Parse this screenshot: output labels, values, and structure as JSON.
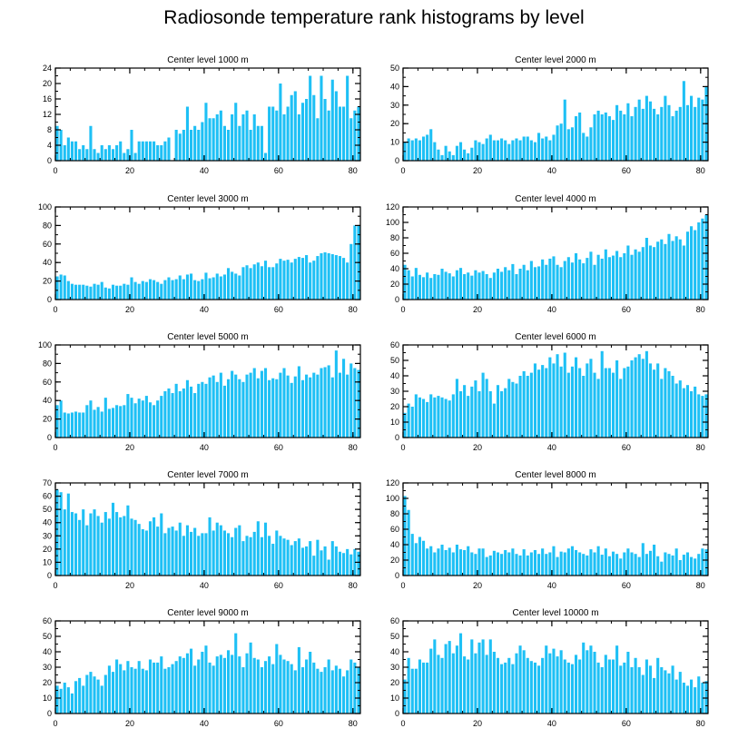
{
  "title": "Radiosonde temperature rank histograms by level",
  "bar_color": "#1ec0f5",
  "chart_data": [
    {
      "type": "bar",
      "title": "Center level 1000 m",
      "xlabel": "",
      "ylabel": "",
      "xlim": [
        0,
        82
      ],
      "ylim": [
        0,
        24
      ],
      "x_ticks": [
        0,
        20,
        40,
        60,
        80
      ],
      "y_ticks": [
        0,
        4,
        8,
        12,
        16,
        20,
        24
      ],
      "values": [
        9,
        8,
        4,
        6,
        5,
        5,
        3,
        4,
        3,
        9,
        3,
        2,
        4,
        3,
        4,
        3,
        4,
        5,
        2,
        3,
        8,
        2,
        5,
        5,
        5,
        5,
        5,
        4,
        4,
        5,
        6,
        0,
        8,
        7,
        8,
        14,
        8,
        9,
        8,
        10,
        15,
        11,
        11,
        12,
        13,
        9,
        8,
        12,
        15,
        9,
        12,
        13,
        8,
        12,
        9,
        9,
        2,
        14,
        14,
        13,
        20,
        12,
        14,
        17,
        18,
        12,
        15,
        16,
        22,
        17,
        11,
        22,
        16,
        13,
        21,
        18,
        14,
        14,
        22,
        11,
        13,
        14
      ]
    },
    {
      "type": "bar",
      "title": "Center level 2000 m",
      "xlabel": "",
      "ylabel": "",
      "xlim": [
        0,
        82
      ],
      "ylim": [
        0,
        50
      ],
      "x_ticks": [
        0,
        20,
        40,
        60,
        80
      ],
      "y_ticks": [
        0,
        10,
        20,
        30,
        40,
        50
      ],
      "values": [
        10,
        12,
        11,
        12,
        11,
        13,
        14,
        17,
        10,
        6,
        3,
        8,
        5,
        3,
        8,
        10,
        6,
        4,
        7,
        11,
        10,
        9,
        12,
        14,
        11,
        11,
        12,
        11,
        9,
        11,
        12,
        11,
        13,
        13,
        11,
        10,
        15,
        12,
        13,
        11,
        14,
        19,
        20,
        33,
        17,
        18,
        24,
        26,
        15,
        13,
        18,
        25,
        27,
        25,
        26,
        24,
        22,
        30,
        27,
        25,
        31,
        24,
        29,
        33,
        28,
        35,
        32,
        28,
        25,
        29,
        35,
        30,
        24,
        27,
        29,
        43,
        30,
        35,
        29,
        34,
        33,
        40
      ]
    },
    {
      "type": "bar",
      "title": "Center level 3000 m",
      "xlabel": "",
      "ylabel": "",
      "xlim": [
        0,
        82
      ],
      "ylim": [
        0,
        100
      ],
      "x_ticks": [
        0,
        20,
        40,
        60,
        80
      ],
      "y_ticks": [
        0,
        20,
        40,
        60,
        80,
        100
      ],
      "values": [
        25,
        27,
        26,
        20,
        17,
        16,
        16,
        16,
        15,
        14,
        17,
        16,
        19,
        13,
        12,
        16,
        15,
        15,
        17,
        16,
        24,
        19,
        17,
        20,
        19,
        22,
        21,
        19,
        17,
        21,
        24,
        21,
        22,
        26,
        22,
        27,
        28,
        21,
        20,
        22,
        29,
        23,
        24,
        28,
        25,
        27,
        34,
        30,
        28,
        26,
        35,
        37,
        34,
        38,
        40,
        36,
        42,
        35,
        35,
        39,
        44,
        42,
        43,
        40,
        44,
        46,
        45,
        48,
        40,
        42,
        47,
        50,
        51,
        50,
        49,
        48,
        47,
        45,
        40,
        60,
        80,
        80
      ]
    },
    {
      "type": "bar",
      "title": "Center level 4000 m",
      "xlabel": "",
      "ylabel": "",
      "xlim": [
        0,
        82
      ],
      "ylim": [
        0,
        120
      ],
      "x_ticks": [
        0,
        20,
        40,
        60,
        80
      ],
      "y_ticks": [
        0,
        20,
        40,
        60,
        80,
        100,
        120
      ],
      "values": [
        45,
        38,
        30,
        41,
        32,
        29,
        35,
        28,
        33,
        32,
        40,
        36,
        34,
        30,
        38,
        41,
        33,
        35,
        31,
        38,
        35,
        37,
        33,
        28,
        35,
        40,
        36,
        42,
        38,
        46,
        33,
        40,
        45,
        38,
        50,
        42,
        43,
        52,
        45,
        53,
        56,
        45,
        42,
        50,
        55,
        48,
        60,
        52,
        47,
        54,
        62,
        45,
        58,
        53,
        65,
        55,
        57,
        63,
        55,
        60,
        70,
        58,
        65,
        62,
        68,
        80,
        70,
        68,
        75,
        78,
        72,
        85,
        76,
        82,
        78,
        70,
        88,
        95,
        90,
        100,
        105,
        110
      ]
    },
    {
      "type": "bar",
      "title": "Center level 5000 m",
      "xlabel": "",
      "ylabel": "",
      "xlim": [
        0,
        82
      ],
      "ylim": [
        0,
        100
      ],
      "x_ticks": [
        0,
        20,
        40,
        60,
        80
      ],
      "y_ticks": [
        0,
        20,
        40,
        60,
        80,
        100
      ],
      "values": [
        35,
        40,
        27,
        26,
        27,
        28,
        27,
        27,
        35,
        40,
        30,
        33,
        28,
        43,
        31,
        32,
        35,
        34,
        35,
        47,
        43,
        37,
        42,
        40,
        45,
        38,
        35,
        40,
        45,
        50,
        53,
        48,
        58,
        50,
        53,
        62,
        55,
        48,
        58,
        60,
        58,
        65,
        67,
        60,
        70,
        56,
        63,
        72,
        68,
        63,
        60,
        68,
        70,
        75,
        64,
        72,
        75,
        62,
        64,
        63,
        70,
        75,
        67,
        59,
        66,
        77,
        62,
        68,
        65,
        70,
        68,
        75,
        76,
        78,
        65,
        94,
        70,
        85,
        68,
        80,
        75,
        73
      ]
    },
    {
      "type": "bar",
      "title": "Center level 6000 m",
      "xlabel": "",
      "ylabel": "",
      "xlim": [
        0,
        82
      ],
      "ylim": [
        0,
        60
      ],
      "x_ticks": [
        0,
        20,
        40,
        60,
        80
      ],
      "y_ticks": [
        0,
        10,
        20,
        30,
        40,
        50,
        60
      ],
      "values": [
        16,
        22,
        20,
        28,
        26,
        25,
        23,
        28,
        26,
        27,
        26,
        25,
        24,
        28,
        38,
        30,
        34,
        27,
        33,
        37,
        30,
        42,
        38,
        30,
        22,
        34,
        30,
        32,
        38,
        36,
        35,
        40,
        43,
        40,
        42,
        48,
        44,
        47,
        45,
        52,
        48,
        54,
        46,
        55,
        42,
        46,
        52,
        45,
        40,
        48,
        51,
        42,
        38,
        56,
        45,
        45,
        42,
        50,
        38,
        45,
        46,
        50,
        52,
        54,
        51,
        56,
        48,
        44,
        48,
        38,
        45,
        43,
        40,
        35,
        37,
        32,
        34,
        30,
        33,
        28,
        27,
        28
      ]
    },
    {
      "type": "bar",
      "title": "Center level 7000 m",
      "xlabel": "",
      "ylabel": "",
      "xlim": [
        0,
        82
      ],
      "ylim": [
        0,
        70
      ],
      "x_ticks": [
        0,
        20,
        40,
        60,
        80
      ],
      "y_ticks": [
        0,
        10,
        20,
        30,
        40,
        50,
        60,
        70
      ],
      "values": [
        65,
        63,
        50,
        62,
        48,
        47,
        42,
        50,
        38,
        47,
        50,
        45,
        40,
        48,
        43,
        55,
        48,
        44,
        45,
        53,
        43,
        42,
        39,
        35,
        34,
        41,
        44,
        37,
        47,
        32,
        36,
        37,
        34,
        40,
        30,
        38,
        33,
        36,
        30,
        32,
        32,
        44,
        34,
        40,
        38,
        34,
        32,
        29,
        36,
        38,
        26,
        30,
        29,
        33,
        41,
        29,
        40,
        30,
        24,
        34,
        30,
        28,
        27,
        23,
        26,
        28,
        21,
        22,
        26,
        15,
        27,
        19,
        22,
        12,
        26,
        22,
        18,
        17,
        20,
        16,
        20,
        18
      ]
    },
    {
      "type": "bar",
      "title": "Center level 8000 m",
      "xlabel": "",
      "ylabel": "",
      "xlim": [
        0,
        82
      ],
      "ylim": [
        0,
        120
      ],
      "x_ticks": [
        0,
        20,
        40,
        60,
        80
      ],
      "y_ticks": [
        0,
        20,
        40,
        60,
        80,
        100,
        120
      ],
      "values": [
        103,
        85,
        54,
        42,
        50,
        45,
        35,
        38,
        30,
        35,
        40,
        33,
        36,
        30,
        40,
        34,
        33,
        38,
        30,
        28,
        35,
        35,
        24,
        26,
        32,
        30,
        28,
        33,
        30,
        35,
        28,
        26,
        34,
        26,
        30,
        33,
        28,
        35,
        28,
        30,
        38,
        24,
        31,
        30,
        35,
        38,
        33,
        30,
        28,
        26,
        34,
        30,
        38,
        27,
        35,
        25,
        31,
        28,
        22,
        30,
        35,
        30,
        28,
        24,
        42,
        28,
        32,
        40,
        25,
        18,
        30,
        28,
        26,
        35,
        20,
        27,
        30,
        24,
        22,
        28,
        35,
        34
      ]
    },
    {
      "type": "bar",
      "title": "Center level 9000 m",
      "xlabel": "",
      "ylabel": "",
      "xlim": [
        0,
        82
      ],
      "ylim": [
        0,
        60
      ],
      "x_ticks": [
        0,
        20,
        40,
        60,
        80
      ],
      "y_ticks": [
        0,
        10,
        20,
        30,
        40,
        50,
        60
      ],
      "values": [
        18,
        16,
        20,
        17,
        13,
        21,
        23,
        18,
        25,
        27,
        24,
        22,
        18,
        25,
        31,
        27,
        35,
        32,
        28,
        34,
        30,
        29,
        34,
        29,
        28,
        35,
        33,
        33,
        37,
        29,
        30,
        32,
        34,
        37,
        36,
        39,
        42,
        31,
        35,
        40,
        44,
        33,
        31,
        37,
        38,
        36,
        41,
        38,
        52,
        37,
        30,
        39,
        46,
        36,
        35,
        30,
        34,
        37,
        32,
        45,
        38,
        35,
        34,
        32,
        28,
        43,
        30,
        35,
        40,
        33,
        29,
        27,
        30,
        35,
        28,
        31,
        29,
        24,
        28,
        35,
        33,
        30
      ]
    },
    {
      "type": "bar",
      "title": "Center level 10000 m",
      "xlabel": "",
      "ylabel": "",
      "xlim": [
        0,
        82
      ],
      "ylim": [
        0,
        60
      ],
      "x_ticks": [
        0,
        20,
        40,
        60,
        80
      ],
      "y_ticks": [
        0,
        10,
        20,
        30,
        40,
        50,
        60
      ],
      "values": [
        22,
        36,
        29,
        29,
        35,
        33,
        33,
        42,
        48,
        38,
        36,
        45,
        47,
        39,
        44,
        52,
        37,
        35,
        48,
        39,
        46,
        48,
        38,
        48,
        40,
        36,
        32,
        33,
        36,
        32,
        39,
        44,
        41,
        36,
        34,
        33,
        31,
        36,
        44,
        39,
        42,
        37,
        41,
        35,
        33,
        32,
        38,
        35,
        46,
        41,
        44,
        40,
        33,
        30,
        38,
        35,
        35,
        44,
        31,
        33,
        40,
        30,
        36,
        30,
        25,
        35,
        31,
        23,
        36,
        30,
        28,
        26,
        31,
        22,
        27,
        20,
        18,
        22,
        17,
        24,
        20,
        21
      ]
    }
  ]
}
